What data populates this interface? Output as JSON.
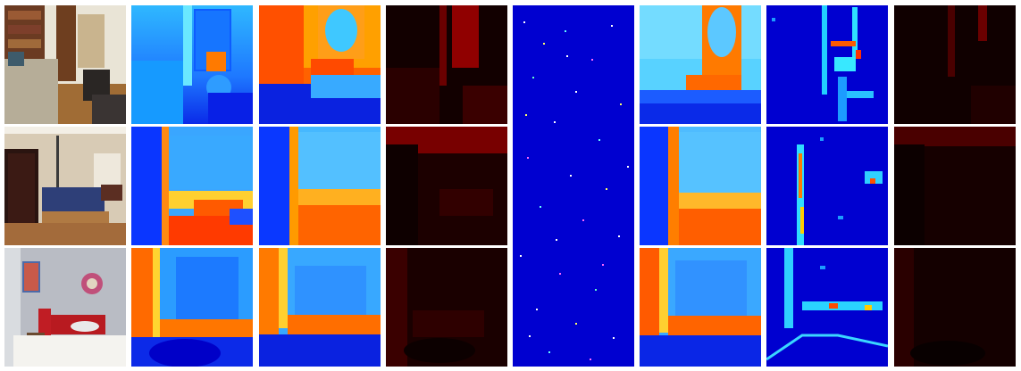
{
  "figure": {
    "rows": 3,
    "columns": [
      "rgb-photo",
      "ground-truth-depth",
      "predicted-depth",
      "depth-error-map",
      "sparse-depth-samples",
      "refined-depth",
      "uncertainty-map",
      "refined-error-map"
    ]
  },
  "palette": {
    "jet_deep_blue": "#0000d8",
    "jet_cyan": "#22c4ff",
    "jet_orange": "#ff6a00",
    "jet_red": "#d80000",
    "error_black": "#0b0000",
    "error_red": "#e00000"
  }
}
